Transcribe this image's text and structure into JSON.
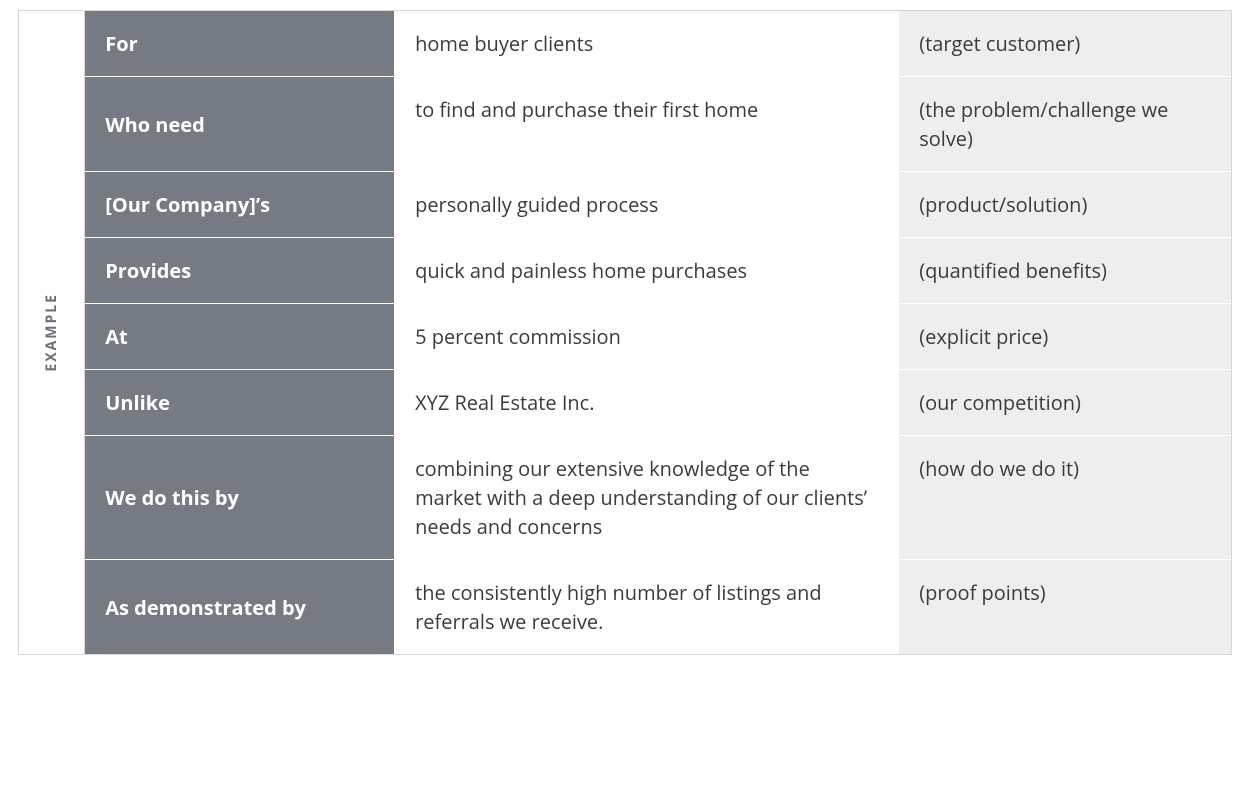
{
  "sideLabel": "EXAMPLE",
  "colors": {
    "labelBg": "#767a83",
    "labelText": "#ffffff",
    "valueBg": "#ffffff",
    "valueText": "#3b3b3b",
    "hintBg": "#eeeeee",
    "hintText": "#3b3b3b",
    "border": "#d8d8d8",
    "sideLabelText": "#6b6f78"
  },
  "typography": {
    "cellFontSize": 20,
    "labelFontWeight": 700,
    "sideLabelFontSize": 14,
    "sideLabelLetterSpacing": 2
  },
  "columns": {
    "labelWidthPct": 27,
    "valueWidthPct": 44,
    "hintWidthPct": 29
  },
  "rows": [
    {
      "label": "For",
      "value": "home buyer clients",
      "hint": "(target customer)"
    },
    {
      "label": "Who need",
      "value": "to find and purchase their first home",
      "hint": "(the problem/challenge we solve)"
    },
    {
      "label": "[Our Company]’s",
      "value": "personally guided process",
      "hint": "(product/solution)"
    },
    {
      "label": "Provides",
      "value": "quick and painless home purchases",
      "hint": "(quantified benefits)"
    },
    {
      "label": "At",
      "value": "5 percent commission",
      "hint": "(explicit price)"
    },
    {
      "label": "Unlike",
      "value": "XYZ Real Estate Inc.",
      "hint": "(our competition)"
    },
    {
      "label": "We do this by",
      "value": "combining our extensive knowledge of the market with a deep understanding of our clients’ needs and concerns",
      "hint": "(how do we do it)"
    },
    {
      "label": "As demonstrated by",
      "value": "the consistently high number of listings and referrals we receive.",
      "hint": "(proof points)"
    }
  ]
}
